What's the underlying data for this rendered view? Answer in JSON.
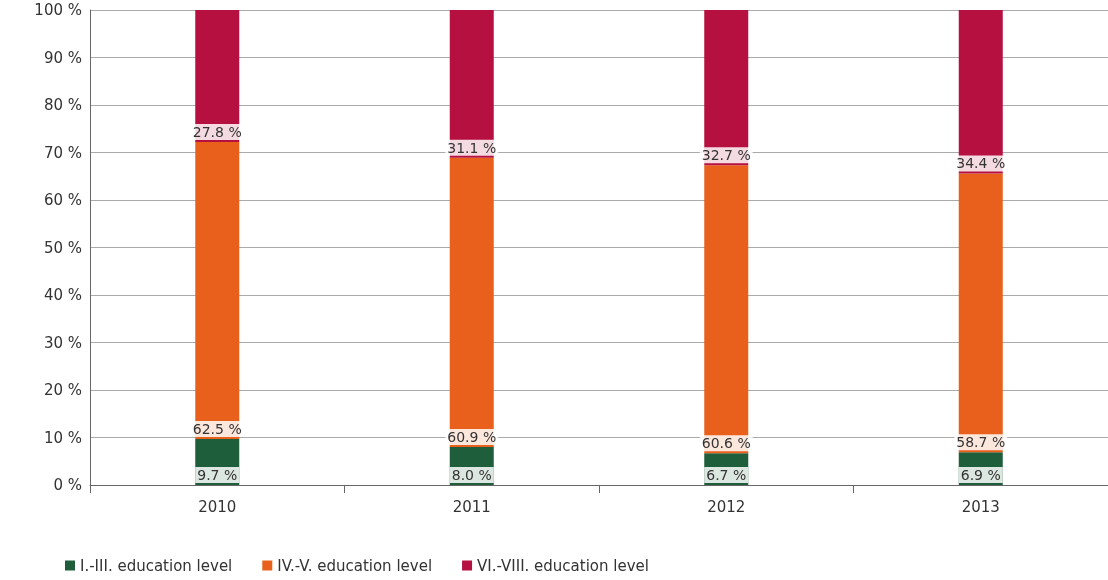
{
  "chart_data": {
    "type": "bar",
    "stacked": true,
    "categories": [
      "2010",
      "2011",
      "2012",
      "2013"
    ],
    "series": [
      {
        "name": "I.-III. education level",
        "color": "#1e5e3a",
        "values": [
          9.7,
          8.0,
          6.7,
          6.9
        ],
        "value_labels": [
          "9.7 %",
          "8.0 %",
          "6.7 %",
          "6.9 %"
        ]
      },
      {
        "name": "IV.-V. education level",
        "color": "#e8601c",
        "values": [
          62.5,
          60.9,
          60.6,
          58.7
        ],
        "value_labels": [
          "62.5 %",
          "60.9 %",
          "60.6 %",
          "58.7 %"
        ]
      },
      {
        "name": "VI.-VIII. education level",
        "color": "#b5103f",
        "values": [
          27.8,
          31.1,
          32.7,
          34.4
        ],
        "value_labels": [
          "27.8 %",
          "31.1 %",
          "32.7 %",
          "34.4 %"
        ]
      }
    ],
    "ylim": [
      0,
      100
    ],
    "yticks": [
      {
        "value": 0,
        "label": "0 %"
      },
      {
        "value": 10,
        "label": "10 %"
      },
      {
        "value": 20,
        "label": "20 %"
      },
      {
        "value": 30,
        "label": "30 %"
      },
      {
        "value": 40,
        "label": "40 %"
      },
      {
        "value": 50,
        "label": "50 %"
      },
      {
        "value": 60,
        "label": "60 %"
      },
      {
        "value": 70,
        "label": "70 %"
      },
      {
        "value": 80,
        "label": "80 %"
      },
      {
        "value": 90,
        "label": "90 %"
      },
      {
        "value": 100,
        "label": "100 %"
      }
    ],
    "grid": "y",
    "legend": "bottom left"
  }
}
